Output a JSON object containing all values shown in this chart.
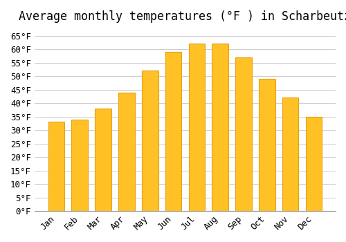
{
  "title": "Average monthly temperatures (°F ) in Scharbeutz",
  "months": [
    "Jan",
    "Feb",
    "Mar",
    "Apr",
    "May",
    "Jun",
    "Jul",
    "Aug",
    "Sep",
    "Oct",
    "Nov",
    "Dec"
  ],
  "values": [
    33,
    34,
    38,
    44,
    52,
    59,
    62,
    62,
    57,
    49,
    42,
    35
  ],
  "bar_color": "#FFC125",
  "bar_edge_color": "#E8A010",
  "background_color": "#FFFFFF",
  "grid_color": "#CCCCCC",
  "ylim": [
    0,
    68
  ],
  "yticks": [
    0,
    5,
    10,
    15,
    20,
    25,
    30,
    35,
    40,
    45,
    50,
    55,
    60,
    65
  ],
  "ylabel_suffix": "°F",
  "title_fontsize": 12,
  "tick_fontsize": 9,
  "font_family": "monospace"
}
